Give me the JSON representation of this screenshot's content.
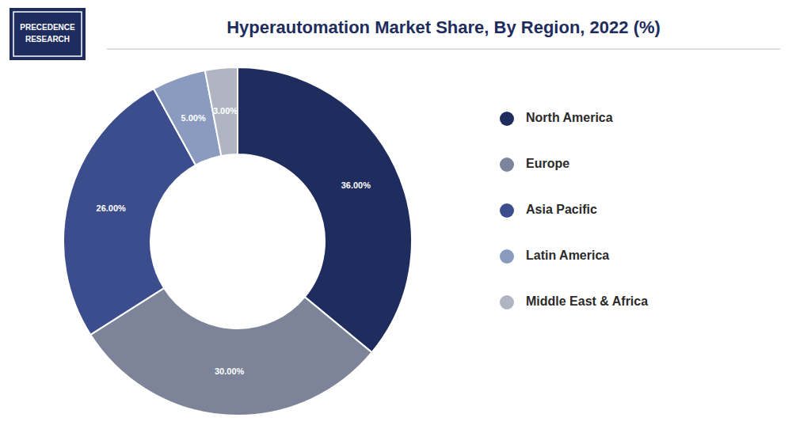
{
  "chart_data": {
    "type": "donut",
    "title": "Hyperautomation Market Share, By Region, 2022 (%)",
    "annotations": [
      "PRECEDENCE",
      "RESEARCH"
    ],
    "categories": [
      "North America",
      "Europe",
      "Asia Pacific",
      "Latin America",
      "Middle East & Africa"
    ],
    "values": [
      36.0,
      30.0,
      26.0,
      5.0,
      3.0
    ],
    "value_labels": [
      "36.00%",
      "30.00%",
      "26.00%",
      "5.00%",
      "3.00%"
    ],
    "colors": [
      "#1e2d5e",
      "#7d8499",
      "#3b4d8c",
      "#8b9bbf",
      "#b0b5c3"
    ],
    "data_labels": true,
    "legend": "right"
  }
}
